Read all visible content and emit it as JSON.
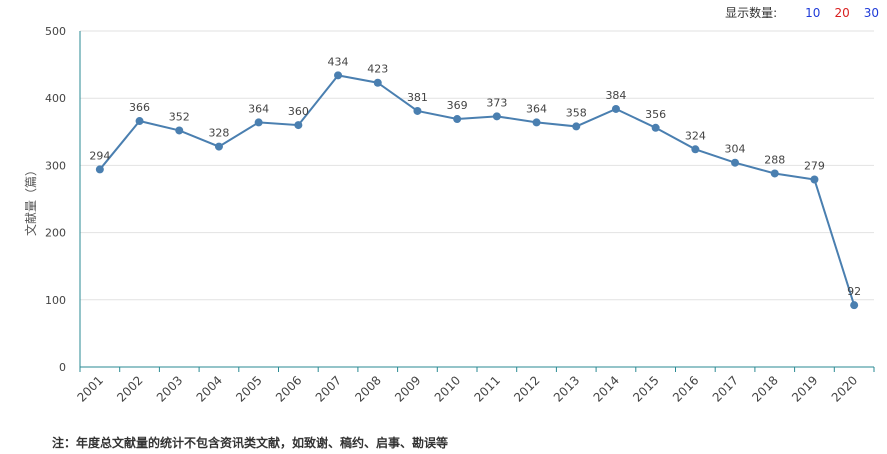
{
  "display_control": {
    "label": "显示数量:",
    "options": [
      {
        "label": "10",
        "color": "#1f3bd8"
      },
      {
        "label": "20",
        "color": "#d81f1f"
      },
      {
        "label": "30",
        "color": "#1f3bd8"
      }
    ]
  },
  "footnote": "注：年度总文献量的统计不包含资讯类文献，如致谢、稿约、启事、勘误等",
  "chart_data": {
    "type": "line",
    "ylabel": "文献量（篇）",
    "ylim": [
      0,
      500
    ],
    "yticks": [
      0,
      100,
      200,
      300,
      400,
      500
    ],
    "grid": true,
    "line_color": "#4a7fb0",
    "categories": [
      "2001",
      "2002",
      "2003",
      "2004",
      "2005",
      "2006",
      "2007",
      "2008",
      "2009",
      "2010",
      "2011",
      "2012",
      "2013",
      "2014",
      "2015",
      "2016",
      "2017",
      "2018",
      "2019",
      "2020"
    ],
    "series": [
      {
        "values": [
          294,
          366,
          352,
          328,
          364,
          360,
          434,
          423,
          381,
          369,
          373,
          364,
          358,
          384,
          356,
          324,
          304,
          288,
          279,
          92
        ]
      }
    ]
  }
}
